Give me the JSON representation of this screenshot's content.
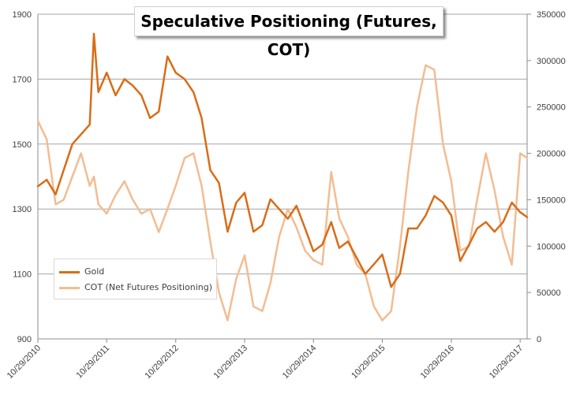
{
  "colors": {
    "gold": "#d86d18",
    "cot": "#f2bd92",
    "grid": "#a6a6a6",
    "axis": "#8c8c8c"
  },
  "chart_data": {
    "type": "line",
    "title": "Speculative Positioning (Futures, COT)",
    "xlabel": "",
    "ylabel_left": "",
    "ylabel_right": "",
    "x_ticks": [
      "10/29/2010",
      "10/29/2011",
      "10/29/2012",
      "10/29/2013",
      "10/29/2014",
      "10/29/2015",
      "10/29/2016",
      "10/29/2017"
    ],
    "y_left_ticks": [
      "900",
      "1100",
      "1300",
      "1500",
      "1700",
      "1900"
    ],
    "y_right_ticks": [
      "0",
      "50000",
      "100000",
      "150000",
      "200000",
      "250000",
      "300000",
      "350000"
    ],
    "ylim_left": [
      900,
      1900
    ],
    "ylim_right": [
      0,
      350000
    ],
    "xlim": [
      "2010-10-29",
      "2017-12-05"
    ],
    "grid": true,
    "legend_position": "bottom-left",
    "x": [
      "2010-10-29",
      "2010-12-15",
      "2011-01-31",
      "2011-03-15",
      "2011-04-30",
      "2011-06-15",
      "2011-07-31",
      "2011-08-22",
      "2011-09-15",
      "2011-10-29",
      "2011-12-15",
      "2012-01-31",
      "2012-03-15",
      "2012-04-30",
      "2012-06-15",
      "2012-07-31",
      "2012-09-15",
      "2012-10-29",
      "2012-12-15",
      "2013-01-31",
      "2013-03-15",
      "2013-04-30",
      "2013-06-15",
      "2013-07-31",
      "2013-09-15",
      "2013-10-29",
      "2013-12-15",
      "2014-01-31",
      "2014-03-15",
      "2014-04-30",
      "2014-06-15",
      "2014-07-31",
      "2014-09-15",
      "2014-10-29",
      "2014-12-15",
      "2015-01-31",
      "2015-03-15",
      "2015-04-30",
      "2015-06-15",
      "2015-07-31",
      "2015-09-15",
      "2015-10-29",
      "2015-12-15",
      "2016-01-31",
      "2016-03-15",
      "2016-04-30",
      "2016-06-15",
      "2016-07-31",
      "2016-09-15",
      "2016-10-29",
      "2016-12-15",
      "2017-01-31",
      "2017-03-15",
      "2017-04-30",
      "2017-06-15",
      "2017-07-31",
      "2017-09-15",
      "2017-10-29",
      "2017-12-05"
    ],
    "series": [
      {
        "name": "Gold",
        "axis": "left",
        "values": [
          1370,
          1390,
          1345,
          1420,
          1500,
          1530,
          1560,
          1840,
          1660,
          1720,
          1650,
          1700,
          1680,
          1650,
          1580,
          1600,
          1770,
          1720,
          1700,
          1660,
          1580,
          1420,
          1380,
          1230,
          1320,
          1350,
          1230,
          1250,
          1330,
          1300,
          1270,
          1310,
          1240,
          1170,
          1190,
          1260,
          1180,
          1200,
          1150,
          1100,
          1130,
          1160,
          1060,
          1100,
          1240,
          1240,
          1280,
          1340,
          1320,
          1280,
          1140,
          1190,
          1240,
          1260,
          1230,
          1260,
          1320,
          1290,
          1275
        ]
      },
      {
        "name": "COT (Net Futures Positioning)",
        "axis": "right",
        "values": [
          235000,
          215000,
          145000,
          150000,
          175000,
          200000,
          165000,
          175000,
          145000,
          135000,
          155000,
          170000,
          150000,
          135000,
          140000,
          115000,
          140000,
          165000,
          195000,
          200000,
          165000,
          105000,
          50000,
          20000,
          65000,
          90000,
          35000,
          30000,
          60000,
          110000,
          140000,
          120000,
          95000,
          85000,
          80000,
          180000,
          130000,
          110000,
          80000,
          70000,
          35000,
          20000,
          30000,
          100000,
          180000,
          250000,
          295000,
          290000,
          210000,
          170000,
          95000,
          100000,
          150000,
          200000,
          160000,
          110000,
          80000,
          200000,
          195000
        ]
      }
    ]
  }
}
